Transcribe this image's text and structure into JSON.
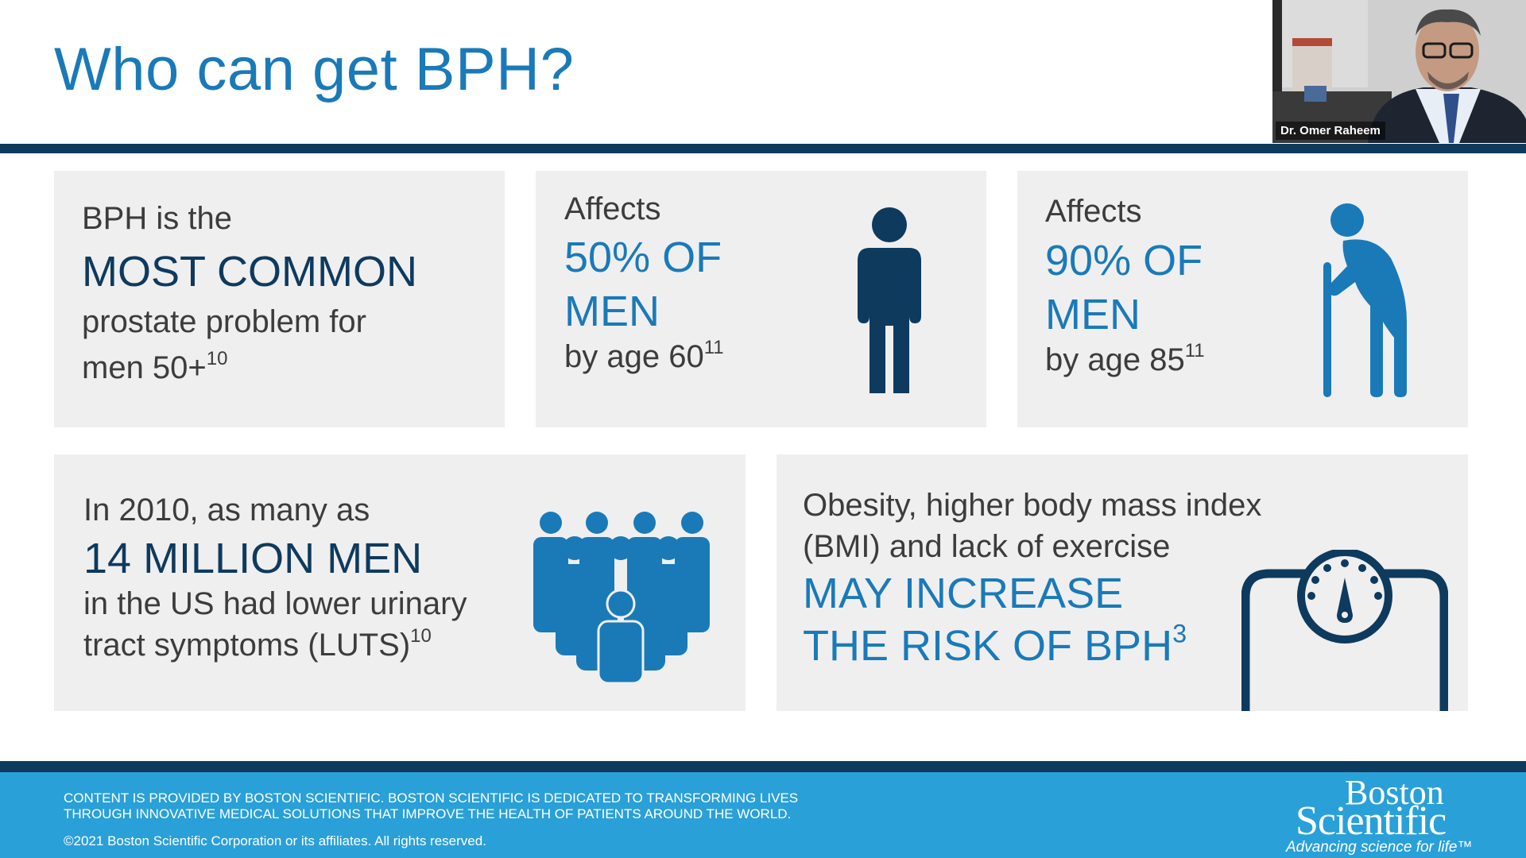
{
  "slide": {
    "title": "Who can get BPH?"
  },
  "cards": {
    "most_common": {
      "line1": "BPH is the",
      "highlight": "MOST COMMON",
      "line3": "prostate problem for",
      "line4": "men 50+",
      "ref": "10"
    },
    "age60": {
      "line1": "Affects",
      "highlight1": "50% OF",
      "highlight2": "MEN",
      "line4": "by age 60",
      "ref": "11",
      "icon": "standing-man-icon"
    },
    "age85": {
      "line1": "Affects",
      "highlight1": "90% OF",
      "highlight2": "MEN",
      "line4": "by age 85",
      "ref": "11",
      "icon": "elderly-man-cane-icon"
    },
    "luts": {
      "line1": "In 2010, as many as",
      "highlight": "14 MILLION MEN",
      "line3": "in the US had lower urinary",
      "line4": "tract symptoms (LUTS)",
      "ref": "10",
      "icon": "crowd-icon"
    },
    "obesity": {
      "line1": "Obesity, higher body mass index",
      "line2": "(BMI) and lack of exercise",
      "highlight1": "MAY INCREASE",
      "highlight2": "THE RISK OF BPH",
      "ref": "3",
      "icon": "weight-scale-icon"
    }
  },
  "footer": {
    "line1": "CONTENT IS PROVIDED BY BOSTON SCIENTIFIC. BOSTON SCIENTIFIC IS DEDICATED TO TRANSFORMING LIVES",
    "line2": "THROUGH INNOVATIVE MEDICAL SOLUTIONS THAT IMPROVE THE HEALTH OF PATIENTS AROUND THE WORLD.",
    "copyright": "©2021 Boston Scientific Corporation or its affiliates. All rights reserved.",
    "logo_line1": "Boston",
    "logo_line2": "Scientific",
    "tagline": "Advancing science for life™"
  },
  "video": {
    "speaker_name": "Dr. Omer Raheem"
  },
  "colors": {
    "title_blue": "#1a7ab8",
    "navy": "#0e3a5e",
    "footer_blue": "#2aa0d8",
    "card_bg": "#efeff0"
  }
}
